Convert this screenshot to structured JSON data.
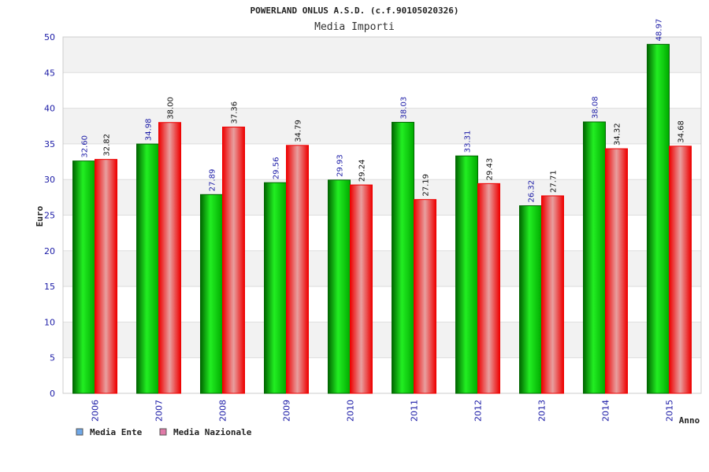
{
  "colors": {
    "series1_dark": "#006600",
    "series1_light": "#22ee22",
    "series2_dark": "#ee0000",
    "series2_light": "#e8a0a0",
    "label_blue": "#1a1aa6",
    "band": "#f2f2f2",
    "grid": "#dddddd",
    "legend_ente": "#6fa8e8",
    "legend_nazionale": "#e07aa8"
  },
  "chart_data": {
    "type": "bar",
    "title": "POWERLAND ONLUS A.S.D. (c.f.90105020326)",
    "subtitle": "Media Importi",
    "xlabel": "Anno",
    "ylabel": "Euro",
    "ylim": [
      0,
      50
    ],
    "yticks": [
      "0",
      "5",
      "10",
      "15",
      "20",
      "25",
      "30",
      "35",
      "40",
      "45",
      "50"
    ],
    "grid": true,
    "legend_position": "bottom-left",
    "categories": [
      "2006",
      "2007",
      "2008",
      "2009",
      "2010",
      "2011",
      "2012",
      "2013",
      "2014",
      "2015"
    ],
    "series": [
      {
        "name": "Media Ente",
        "values": [
          32.6,
          34.98,
          27.89,
          29.56,
          29.93,
          38.03,
          33.31,
          26.32,
          38.08,
          48.97
        ],
        "labels": [
          "32.60",
          "34.98",
          "27.89",
          "29.56",
          "29.93",
          "38.03",
          "33.31",
          "26.32",
          "38.08",
          "48.97"
        ]
      },
      {
        "name": "Media Nazionale",
        "values": [
          32.82,
          38.0,
          37.36,
          34.79,
          29.24,
          27.19,
          29.43,
          27.71,
          34.32,
          34.68
        ],
        "labels": [
          "32.82",
          "38.00",
          "37.36",
          "34.79",
          "29.24",
          "27.19",
          "29.43",
          "27.71",
          "34.32",
          "34.68"
        ]
      }
    ]
  }
}
